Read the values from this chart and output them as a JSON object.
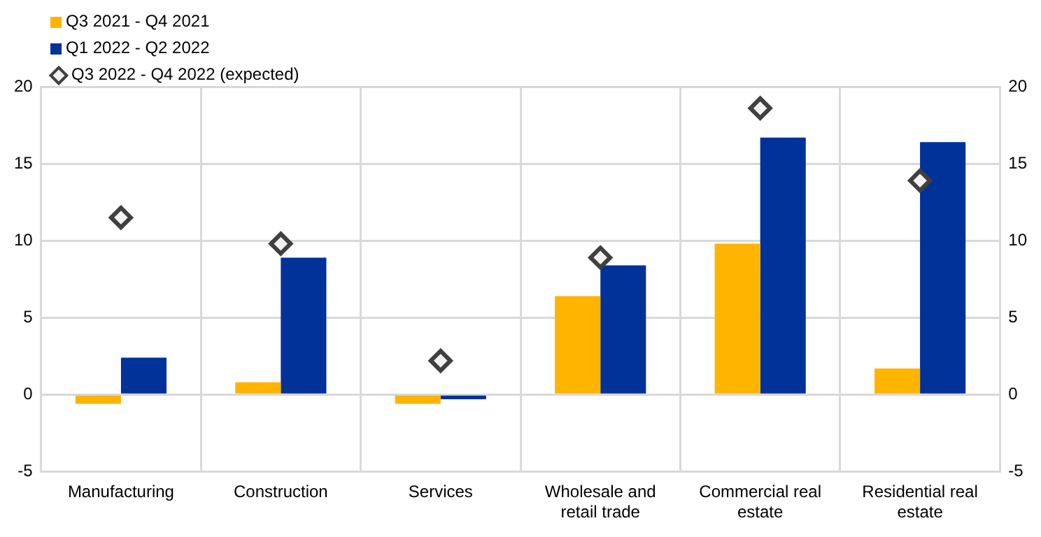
{
  "chart_data": {
    "type": "bar",
    "categories": [
      "Manufacturing",
      "Construction",
      "Services",
      "Wholesale and retail trade",
      "Commercial real estate",
      "Residential real estate"
    ],
    "series": [
      {
        "name": "Q3 2021 - Q4 2021",
        "color": "#ffb400",
        "values": [
          -0.6,
          0.8,
          -0.6,
          6.4,
          9.8,
          1.7
        ]
      },
      {
        "name": "Q1 2022 - Q2 2022",
        "color": "#003299",
        "values": [
          2.4,
          8.9,
          -0.3,
          8.4,
          16.7,
          16.4
        ]
      },
      {
        "name": "Q3 2022 - Q4 2022 (expected)",
        "type": "scatter",
        "color": "#404040",
        "marker": "diamond",
        "x": [
          "Manufacturing",
          "Construction",
          "Services",
          "Wholesale and retail trade",
          "Commercial real estate",
          "Residential real estate"
        ],
        "values": [
          11.5,
          9.8,
          2.2,
          8.9,
          18.6,
          13.9
        ]
      }
    ],
    "ylim": [
      -5,
      20
    ],
    "yticks": [
      -5,
      0,
      5,
      10,
      15,
      20
    ],
    "y2lim": [
      -5,
      20
    ],
    "y2ticks": [
      -5,
      0,
      5,
      10,
      15,
      20
    ],
    "grid": true,
    "legend": "top left"
  }
}
